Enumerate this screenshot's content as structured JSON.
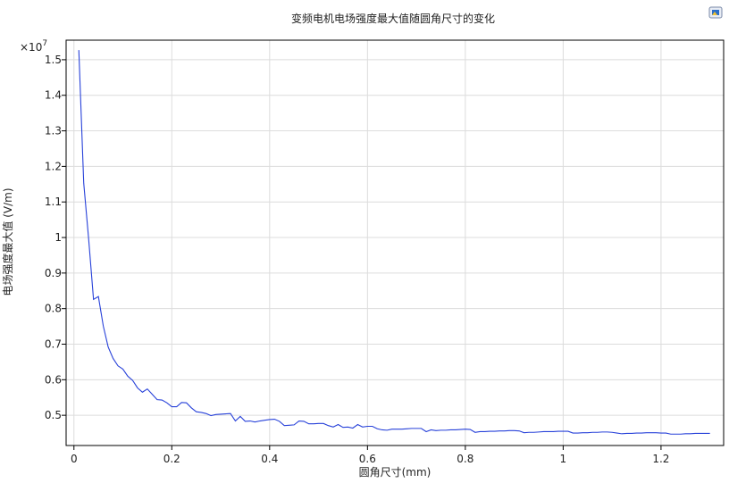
{
  "chart_data": {
    "type": "line",
    "title": "变频电机电场强度最大值随圆角尺寸的变化",
    "xlabel": "圆角尺寸(mm)",
    "ylabel": "电场强度最大值 (V/m)",
    "y_multiplier": "×10",
    "y_multiplier_exponent": "7",
    "xlim": [
      -0.016,
      1.328
    ],
    "ylim": [
      0.415,
      1.555
    ],
    "grid": true,
    "xticks": [
      0,
      0.2,
      0.4,
      0.6,
      0.8,
      1,
      1.2
    ],
    "xtick_labels": [
      "0",
      "0.2",
      "0.4",
      "0.6",
      "0.8",
      "1",
      "1.2"
    ],
    "yticks": [
      0.5,
      0.6,
      0.7,
      0.8,
      0.9,
      1,
      1.1,
      1.2,
      1.3,
      1.4,
      1.5
    ],
    "ytick_labels": [
      "0.5",
      "0.6",
      "0.7",
      "0.8",
      "0.9",
      "1",
      "1.1",
      "1.2",
      "1.3",
      "1.4",
      "1.5"
    ],
    "series": [
      {
        "color": "#2741d9",
        "points": [
          [
            0.01,
            1.527
          ],
          [
            0.02,
            1.153
          ],
          [
            0.03,
            0.997
          ],
          [
            0.04,
            0.826
          ],
          [
            0.05,
            0.834
          ],
          [
            0.06,
            0.751
          ],
          [
            0.07,
            0.692
          ],
          [
            0.08,
            0.66
          ],
          [
            0.09,
            0.639
          ],
          [
            0.1,
            0.63
          ],
          [
            0.11,
            0.61
          ],
          [
            0.12,
            0.598
          ],
          [
            0.13,
            0.577
          ],
          [
            0.14,
            0.565
          ],
          [
            0.15,
            0.574
          ],
          [
            0.16,
            0.559
          ],
          [
            0.17,
            0.544
          ],
          [
            0.18,
            0.543
          ],
          [
            0.19,
            0.535
          ],
          [
            0.2,
            0.524
          ],
          [
            0.21,
            0.524
          ],
          [
            0.22,
            0.536
          ],
          [
            0.23,
            0.535
          ],
          [
            0.24,
            0.521
          ],
          [
            0.25,
            0.51
          ],
          [
            0.26,
            0.508
          ],
          [
            0.27,
            0.505
          ],
          [
            0.28,
            0.499
          ],
          [
            0.29,
            0.502
          ],
          [
            0.3,
            0.503
          ],
          [
            0.31,
            0.504
          ],
          [
            0.32,
            0.505
          ],
          [
            0.33,
            0.484
          ],
          [
            0.34,
            0.497
          ],
          [
            0.35,
            0.483
          ],
          [
            0.36,
            0.484
          ],
          [
            0.37,
            0.481
          ],
          [
            0.38,
            0.484
          ],
          [
            0.39,
            0.486
          ],
          [
            0.4,
            0.488
          ],
          [
            0.41,
            0.489
          ],
          [
            0.42,
            0.483
          ],
          [
            0.43,
            0.471
          ],
          [
            0.44,
            0.472
          ],
          [
            0.45,
            0.473
          ],
          [
            0.46,
            0.484
          ],
          [
            0.47,
            0.483
          ],
          [
            0.48,
            0.476
          ],
          [
            0.49,
            0.476
          ],
          [
            0.5,
            0.477
          ],
          [
            0.51,
            0.477
          ],
          [
            0.52,
            0.471
          ],
          [
            0.53,
            0.467
          ],
          [
            0.54,
            0.474
          ],
          [
            0.55,
            0.466
          ],
          [
            0.56,
            0.467
          ],
          [
            0.57,
            0.464
          ],
          [
            0.58,
            0.474
          ],
          [
            0.59,
            0.467
          ],
          [
            0.6,
            0.469
          ],
          [
            0.61,
            0.469
          ],
          [
            0.62,
            0.462
          ],
          [
            0.63,
            0.459
          ],
          [
            0.64,
            0.458
          ],
          [
            0.65,
            0.461
          ],
          [
            0.66,
            0.461
          ],
          [
            0.67,
            0.461
          ],
          [
            0.68,
            0.462
          ],
          [
            0.69,
            0.463
          ],
          [
            0.7,
            0.463
          ],
          [
            0.71,
            0.463
          ],
          [
            0.72,
            0.454
          ],
          [
            0.73,
            0.459
          ],
          [
            0.74,
            0.457
          ],
          [
            0.75,
            0.458
          ],
          [
            0.76,
            0.458
          ],
          [
            0.77,
            0.459
          ],
          [
            0.78,
            0.459
          ],
          [
            0.79,
            0.46
          ],
          [
            0.8,
            0.461
          ],
          [
            0.81,
            0.46
          ],
          [
            0.82,
            0.452
          ],
          [
            0.83,
            0.454
          ],
          [
            0.84,
            0.454
          ],
          [
            0.85,
            0.455
          ],
          [
            0.86,
            0.455
          ],
          [
            0.87,
            0.456
          ],
          [
            0.88,
            0.456
          ],
          [
            0.89,
            0.457
          ],
          [
            0.9,
            0.457
          ],
          [
            0.91,
            0.456
          ],
          [
            0.92,
            0.451
          ],
          [
            0.93,
            0.452
          ],
          [
            0.94,
            0.452
          ],
          [
            0.95,
            0.453
          ],
          [
            0.96,
            0.454
          ],
          [
            0.97,
            0.454
          ],
          [
            0.98,
            0.454
          ],
          [
            0.99,
            0.455
          ],
          [
            1.0,
            0.455
          ],
          [
            1.01,
            0.455
          ],
          [
            1.02,
            0.45
          ],
          [
            1.03,
            0.45
          ],
          [
            1.04,
            0.451
          ],
          [
            1.05,
            0.451
          ],
          [
            1.06,
            0.452
          ],
          [
            1.07,
            0.452
          ],
          [
            1.08,
            0.453
          ],
          [
            1.09,
            0.453
          ],
          [
            1.1,
            0.452
          ],
          [
            1.11,
            0.45
          ],
          [
            1.12,
            0.448
          ],
          [
            1.13,
            0.449
          ],
          [
            1.14,
            0.449
          ],
          [
            1.15,
            0.45
          ],
          [
            1.16,
            0.45
          ],
          [
            1.17,
            0.451
          ],
          [
            1.18,
            0.451
          ],
          [
            1.19,
            0.451
          ],
          [
            1.2,
            0.45
          ],
          [
            1.21,
            0.45
          ],
          [
            1.22,
            0.447
          ],
          [
            1.23,
            0.447
          ],
          [
            1.24,
            0.447
          ],
          [
            1.25,
            0.448
          ],
          [
            1.26,
            0.448
          ],
          [
            1.27,
            0.449
          ],
          [
            1.28,
            0.449
          ],
          [
            1.29,
            0.449
          ],
          [
            1.3,
            0.449
          ]
        ]
      }
    ]
  },
  "toolbar": {
    "icon": "image-icon"
  }
}
